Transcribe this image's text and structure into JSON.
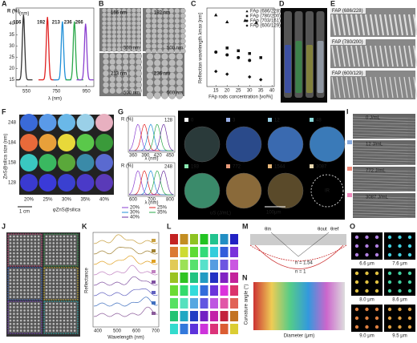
{
  "letters": [
    "A",
    "B",
    "C",
    "D",
    "E",
    "F",
    "G",
    "H",
    "I",
    "J",
    "K",
    "L",
    "M",
    "N",
    "O"
  ],
  "a": {
    "y_label": "R (%)",
    "x_label": "λ (nm)",
    "unit": "(nm)",
    "xlim": [
      480,
      1000
    ],
    "ylim": [
      12,
      47
    ],
    "xticks": [
      550,
      750,
      950
    ],
    "yticks": [
      15,
      20,
      25,
      30,
      35,
      40
    ],
    "peaks": [
      {
        "label": "166",
        "x": 530,
        "y": 44,
        "color": "#333333"
      },
      {
        "label": "192",
        "x": 690,
        "y": 43,
        "color": "#e02020"
      },
      {
        "label": "213",
        "x": 790,
        "y": 41,
        "color": "#1f8fd8"
      },
      {
        "label": "236",
        "x": 870,
        "y": 41,
        "color": "#2aa84a"
      },
      {
        "label": "266",
        "x": 945,
        "y": 40,
        "color": "#8a3fd0"
      }
    ]
  },
  "b": {
    "labels": [
      "166 nm",
      "192 nm",
      "213 nm",
      "236 nm"
    ],
    "scale": "500 nm"
  },
  "c": {
    "y_label": "Reflection wavelength λmax [nm]",
    "x_label": "FAp rods concentration [vol%]",
    "xlim": [
      11,
      41
    ],
    "xticks": [
      15,
      20,
      25,
      30,
      35,
      40
    ],
    "ylim": [
      250,
      820
    ],
    "series": [
      {
        "name": "FAp (686/228)",
        "marker": "triangle",
        "x": [
          15,
          20,
          28,
          33
        ],
        "values": [
          770,
          720,
          730,
          715
        ]
      },
      {
        "name": "FAp (780/200)",
        "marker": "square",
        "x": [
          20,
          25,
          30,
          35
        ],
        "values": [
          530,
          510,
          490,
          460
        ]
      },
      {
        "name": "FAp (703/161)",
        "marker": "circle",
        "x": [
          15,
          20,
          25,
          30
        ],
        "values": [
          500,
          480,
          460,
          440
        ]
      },
      {
        "name": "FAp (600/129)",
        "marker": "diamond",
        "x": [
          15,
          20,
          30,
          35
        ],
        "values": [
          360,
          340,
          320,
          300
        ]
      }
    ]
  },
  "e": {
    "labels": [
      "FAP (686/228)",
      "FAP (780/200)",
      "FAP (600/129)"
    ]
  },
  "f": {
    "y_label": "ZnS@silica size (nm)",
    "rows": [
      "248",
      "184",
      "158",
      "128"
    ],
    "cols": [
      "20%",
      "25%",
      "30%",
      "35%",
      "40%"
    ],
    "x_label": "φZnS@silica",
    "scale": "1 cm"
  },
  "g": {
    "y_label": "R (%)",
    "x_label": "λ (nm)",
    "top": {
      "title": "128",
      "xticks": [
        360,
        390,
        420,
        450
      ]
    },
    "bottom": {
      "title": "248",
      "xticks": [
        600,
        700,
        800
      ]
    },
    "legend": [
      {
        "name": "20%",
        "color": "#8a3fd0"
      },
      {
        "name": "25%",
        "color": "#e02020"
      },
      {
        "name": "30%",
        "color": "#1f8fd8"
      },
      {
        "name": "35%",
        "color": "#2aa84a"
      },
      {
        "name": "40%",
        "color": "#6a2fa0"
      }
    ]
  },
  "h": {
    "labels": [
      "0",
      "3",
      "12",
      "48",
      "193",
      "772",
      "1544",
      "3087"
    ],
    "ir": "IR",
    "x_label": "uS (J/mL)",
    "scale": "100μm"
  },
  "i": {
    "labels": [
      "0 J/mL",
      "12 J/mL",
      "772 J/mL",
      "3087 J/mL"
    ]
  },
  "k": {
    "y_label": "Reflectance",
    "x_label": "Wavelength (nm)",
    "xticks": [
      400,
      500,
      600,
      700
    ]
  },
  "m": {
    "theta_in": "θin",
    "theta_out": "θout",
    "theta_ref": "θref",
    "n1": "n = 1.54",
    "n2": "n = 1"
  },
  "n": {
    "y_label": "Curvature angle (°)",
    "x_label": "Diameter (μm)"
  },
  "o": {
    "labels": [
      "6.6 μm",
      "7.6 μm",
      "8.0 μm",
      "8.6 μm",
      "9.0 μm",
      "9.5 μm"
    ]
  }
}
